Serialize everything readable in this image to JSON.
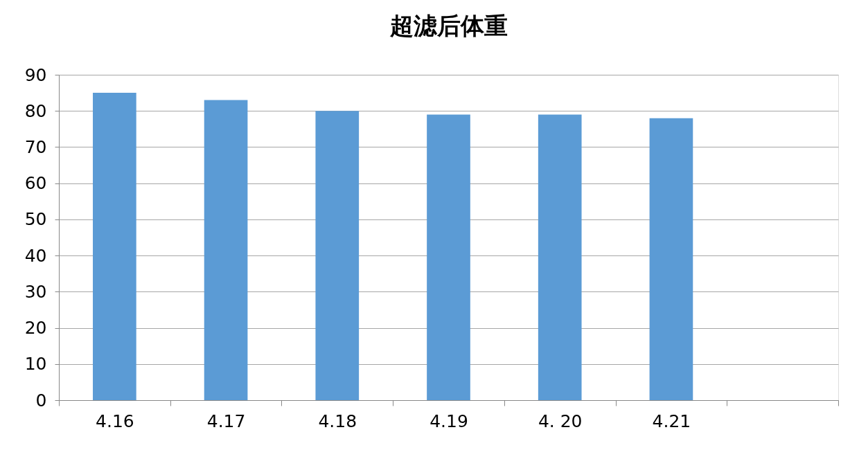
{
  "chart_data": {
    "type": "bar",
    "title": "超滤后体重",
    "categories": [
      "4.16",
      "4.17",
      "4.18",
      "4.19",
      "4. 20",
      "4.21",
      null
    ],
    "values": [
      85,
      83,
      80,
      79,
      79,
      78,
      null
    ],
    "color": "#5b9bd5",
    "ylim": [
      0,
      90
    ],
    "yticks": [
      0,
      10,
      20,
      30,
      40,
      50,
      60,
      70,
      80,
      90
    ],
    "grid": "y"
  }
}
